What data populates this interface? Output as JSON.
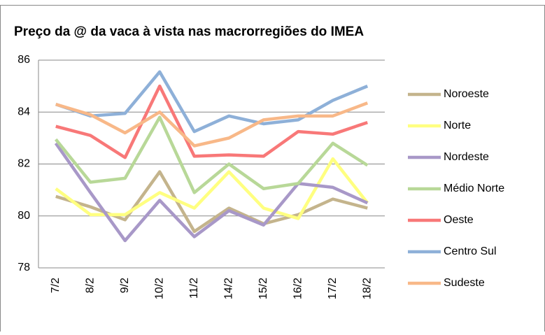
{
  "chart_data": {
    "type": "line",
    "title": "Preço da @ da vaca à vista nas macrorregiões do IMEA",
    "categories": [
      "7/2",
      "8/2",
      "9/2",
      "10/2",
      "11/2",
      "14/2",
      "15/2",
      "16/2",
      "17/2",
      "18/2"
    ],
    "series": [
      {
        "name": "Noroeste",
        "color": "#c4b48c",
        "values": [
          80.75,
          80.35,
          79.85,
          81.7,
          79.4,
          80.3,
          79.7,
          80.05,
          80.65,
          80.3
        ]
      },
      {
        "name": "Norte",
        "color": "#ffff80",
        "values": [
          81.05,
          80.05,
          80.05,
          80.9,
          80.3,
          81.7,
          80.3,
          79.9,
          82.2,
          80.5
        ]
      },
      {
        "name": "Nordeste",
        "color": "#a898c8",
        "values": [
          82.8,
          80.9,
          79.05,
          80.6,
          79.2,
          80.2,
          79.65,
          81.25,
          81.1,
          80.5
        ]
      },
      {
        "name": "Médio Norte",
        "color": "#b8d898",
        "values": [
          82.95,
          81.3,
          81.45,
          83.8,
          80.9,
          82.0,
          81.05,
          81.25,
          82.8,
          81.95
        ]
      },
      {
        "name": "Oeste",
        "color": "#f87878",
        "values": [
          83.45,
          83.1,
          82.25,
          85.0,
          82.3,
          82.35,
          82.3,
          83.25,
          83.15,
          83.6
        ]
      },
      {
        "name": "Centro Sul",
        "color": "#8eb0d8",
        "values": [
          84.3,
          83.85,
          83.95,
          85.55,
          83.25,
          83.85,
          83.55,
          83.7,
          84.45,
          85.0
        ]
      },
      {
        "name": "Sudeste",
        "color": "#f8b888",
        "values": [
          84.3,
          83.9,
          83.2,
          84.0,
          82.7,
          83.0,
          83.7,
          83.85,
          83.85,
          84.35
        ]
      }
    ],
    "ylim": [
      78,
      86
    ],
    "yticks": [
      78,
      80,
      82,
      84,
      86
    ],
    "grid": true
  }
}
